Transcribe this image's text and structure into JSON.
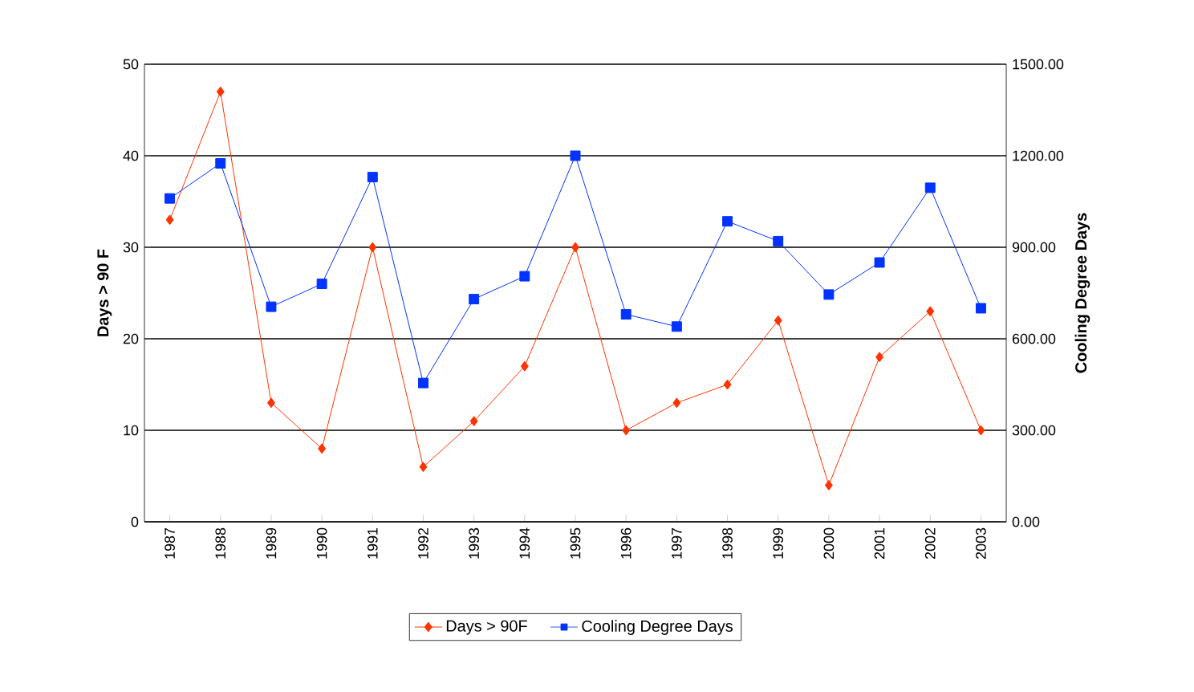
{
  "chart_data": {
    "type": "line",
    "categories": [
      "1987",
      "1988",
      "1989",
      "1990",
      "1991",
      "1992",
      "1993",
      "1994",
      "1995",
      "1996",
      "1997",
      "1998",
      "1999",
      "2000",
      "2001",
      "2002",
      "2003"
    ],
    "series": [
      {
        "name": "Days > 90F",
        "color": "#ff3300",
        "marker": "diamond",
        "values": [
          33,
          47,
          13,
          8,
          30,
          6,
          11,
          17,
          30,
          10,
          13,
          15,
          22,
          4,
          18,
          23,
          10
        ]
      },
      {
        "name": "Cooling Degree Days",
        "color": "#0033ff",
        "marker": "square",
        "axis": "y2",
        "values": [
          1060,
          1175,
          705,
          780,
          1130,
          455,
          730,
          805,
          1200,
          680,
          640,
          985,
          920,
          745,
          850,
          1095,
          700
        ]
      }
    ],
    "ylabel": "Days > 90 F",
    "y2label": "Cooling Degree Days",
    "ylim": [
      0,
      50
    ],
    "yticks": [
      0,
      10,
      20,
      30,
      40,
      50
    ],
    "y2lim": [
      0,
      1500
    ],
    "y2ticks": [
      {
        "value": 0,
        "label": "0.00"
      },
      {
        "value": 300,
        "label": "300.00"
      },
      {
        "value": 600,
        "label": "600.00"
      },
      {
        "value": 900,
        "label": "900.00"
      },
      {
        "value": 1200,
        "label": "1200.00"
      },
      {
        "value": 1500,
        "label": "1500.00"
      }
    ],
    "grid": "y",
    "legend": "bottom",
    "line_style": "solid"
  }
}
